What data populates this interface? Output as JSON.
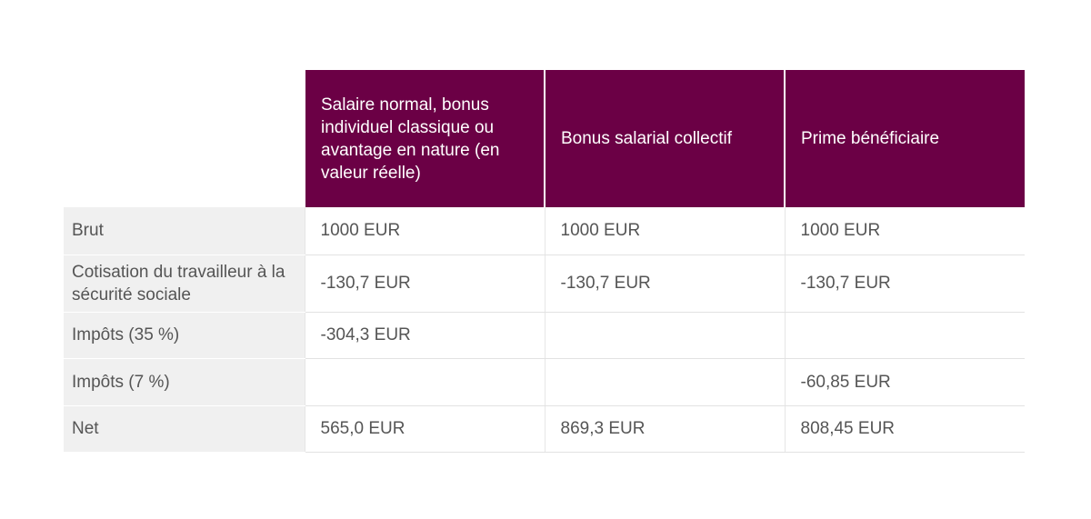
{
  "table": {
    "header": [
      null,
      "Salaire normal, bonus individuel classique ou avantage en nature (en valeur réelle)",
      "Bonus salarial collectif",
      "Prime bénéficiaire"
    ],
    "rows": [
      [
        "Brut",
        "1000 EUR",
        "1000 EUR",
        "1000 EUR"
      ],
      [
        "Cotisation du travailleur à la sécurité sociale",
        "-130,7 EUR",
        "-130,7 EUR",
        "-130,7 EUR"
      ],
      [
        "Impôts (35 %)",
        "-304,3 EUR",
        null,
        null
      ],
      [
        "Impôts (7 %)",
        null,
        null,
        "-60,85 EUR"
      ],
      [
        "Net",
        "565,0 EUR",
        "869,3 EUR",
        "808,45 EUR"
      ]
    ]
  }
}
